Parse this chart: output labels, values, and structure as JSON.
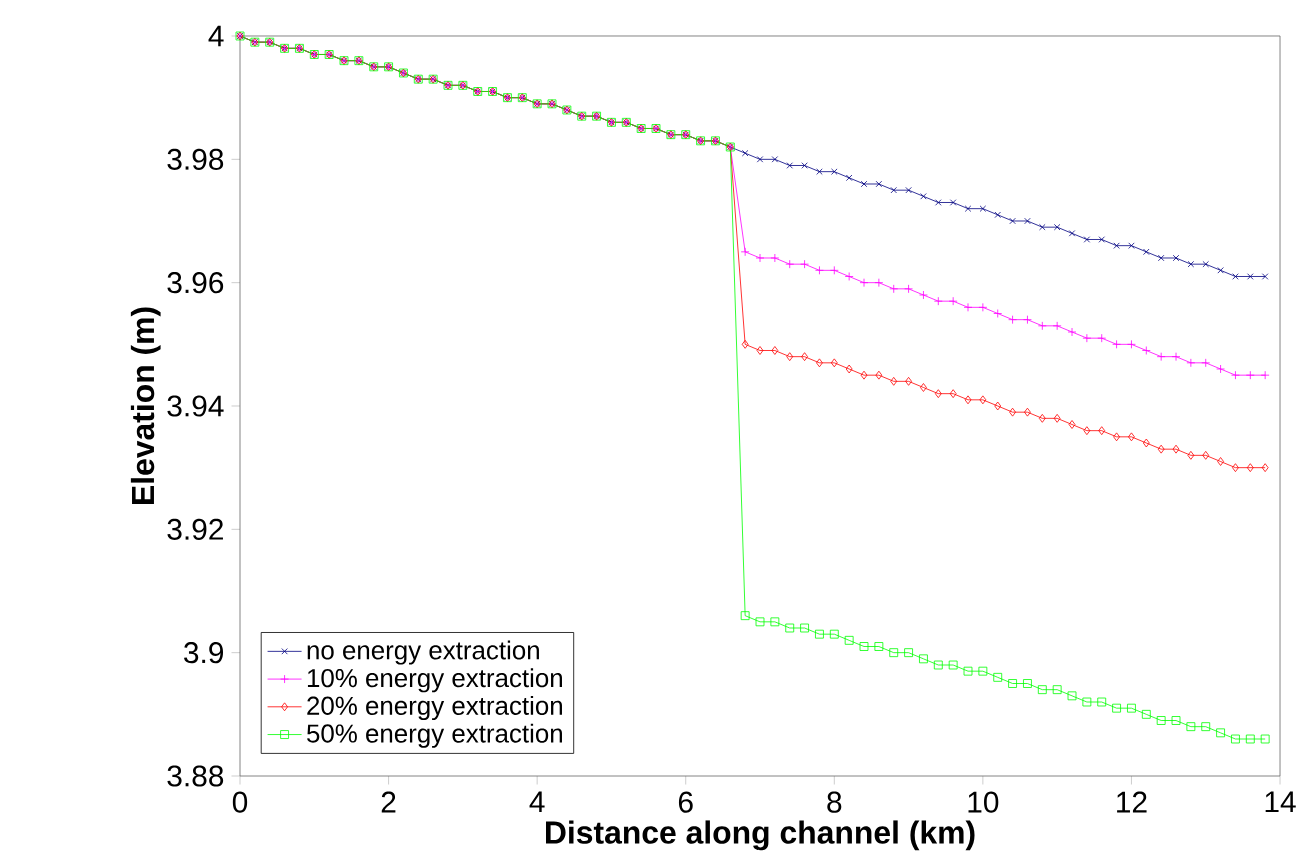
{
  "chart_data": {
    "type": "line",
    "xlabel": "Distance along channel (km)",
    "ylabel": "Elevation (m)",
    "x": [
      0,
      0.2,
      0.4,
      0.6,
      0.8,
      1.0,
      1.2,
      1.4,
      1.6,
      1.8,
      2.0,
      2.2,
      2.4,
      2.6,
      2.8,
      3.0,
      3.2,
      3.4,
      3.6,
      3.8,
      4.0,
      4.2,
      4.4,
      4.6,
      4.8,
      5.0,
      5.2,
      5.4,
      5.6,
      5.8,
      6.0,
      6.2,
      6.4,
      6.6,
      6.8,
      7.0,
      7.2,
      7.4,
      7.6,
      7.8,
      8.0,
      8.2,
      8.4,
      8.6,
      8.8,
      9.0,
      9.2,
      9.4,
      9.6,
      9.8,
      10.0,
      10.2,
      10.4,
      10.6,
      10.8,
      11.0,
      11.2,
      11.4,
      11.6,
      11.8,
      12.0,
      12.2,
      12.4,
      12.6,
      12.8,
      13.0,
      13.2,
      13.4,
      13.6,
      13.8
    ],
    "series": [
      {
        "name": "no energy extraction",
        "color": "#000080",
        "marker": "cross",
        "values": [
          4.0,
          3.999,
          3.999,
          3.998,
          3.998,
          3.997,
          3.997,
          3.996,
          3.996,
          3.995,
          3.995,
          3.994,
          3.993,
          3.993,
          3.992,
          3.992,
          3.991,
          3.991,
          3.99,
          3.99,
          3.989,
          3.989,
          3.988,
          3.987,
          3.987,
          3.986,
          3.986,
          3.985,
          3.985,
          3.984,
          3.984,
          3.983,
          3.983,
          3.982,
          3.981,
          3.98,
          3.98,
          3.979,
          3.979,
          3.978,
          3.978,
          3.977,
          3.976,
          3.976,
          3.975,
          3.975,
          3.974,
          3.973,
          3.973,
          3.972,
          3.972,
          3.971,
          3.97,
          3.97,
          3.969,
          3.969,
          3.968,
          3.967,
          3.967,
          3.966,
          3.966,
          3.965,
          3.964,
          3.964,
          3.963,
          3.963,
          3.962,
          3.961,
          3.961,
          3.961
        ]
      },
      {
        "name": "10% energy extraction",
        "color": "#ff00ff",
        "marker": "plus",
        "values": [
          4.0,
          3.999,
          3.999,
          3.998,
          3.998,
          3.997,
          3.997,
          3.996,
          3.996,
          3.995,
          3.995,
          3.994,
          3.993,
          3.993,
          3.992,
          3.992,
          3.991,
          3.991,
          3.99,
          3.99,
          3.989,
          3.989,
          3.988,
          3.987,
          3.987,
          3.986,
          3.986,
          3.985,
          3.985,
          3.984,
          3.984,
          3.983,
          3.983,
          3.982,
          3.965,
          3.964,
          3.964,
          3.963,
          3.963,
          3.962,
          3.962,
          3.961,
          3.96,
          3.96,
          3.959,
          3.959,
          3.958,
          3.957,
          3.957,
          3.956,
          3.956,
          3.955,
          3.954,
          3.954,
          3.953,
          3.953,
          3.952,
          3.951,
          3.951,
          3.95,
          3.95,
          3.949,
          3.948,
          3.948,
          3.947,
          3.947,
          3.946,
          3.945,
          3.945,
          3.945
        ]
      },
      {
        "name": "20% energy extraction",
        "color": "#ff0000",
        "marker": "diamond",
        "values": [
          4.0,
          3.999,
          3.999,
          3.998,
          3.998,
          3.997,
          3.997,
          3.996,
          3.996,
          3.995,
          3.995,
          3.994,
          3.993,
          3.993,
          3.992,
          3.992,
          3.991,
          3.991,
          3.99,
          3.99,
          3.989,
          3.989,
          3.988,
          3.987,
          3.987,
          3.986,
          3.986,
          3.985,
          3.985,
          3.984,
          3.984,
          3.983,
          3.983,
          3.982,
          3.95,
          3.949,
          3.949,
          3.948,
          3.948,
          3.947,
          3.947,
          3.946,
          3.945,
          3.945,
          3.944,
          3.944,
          3.943,
          3.942,
          3.942,
          3.941,
          3.941,
          3.94,
          3.939,
          3.939,
          3.938,
          3.938,
          3.937,
          3.936,
          3.936,
          3.935,
          3.935,
          3.934,
          3.933,
          3.933,
          3.932,
          3.932,
          3.931,
          3.93,
          3.93,
          3.93
        ]
      },
      {
        "name": "50% energy extraction",
        "color": "#00ff00",
        "marker": "square",
        "values": [
          4.0,
          3.999,
          3.999,
          3.998,
          3.998,
          3.997,
          3.997,
          3.996,
          3.996,
          3.995,
          3.995,
          3.994,
          3.993,
          3.993,
          3.992,
          3.992,
          3.991,
          3.991,
          3.99,
          3.99,
          3.989,
          3.989,
          3.988,
          3.987,
          3.987,
          3.986,
          3.986,
          3.985,
          3.985,
          3.984,
          3.984,
          3.983,
          3.983,
          3.982,
          3.906,
          3.905,
          3.905,
          3.904,
          3.904,
          3.903,
          3.903,
          3.902,
          3.901,
          3.901,
          3.9,
          3.9,
          3.899,
          3.898,
          3.898,
          3.897,
          3.897,
          3.896,
          3.895,
          3.895,
          3.894,
          3.894,
          3.893,
          3.892,
          3.892,
          3.891,
          3.891,
          3.89,
          3.889,
          3.889,
          3.888,
          3.888,
          3.887,
          3.886,
          3.886,
          3.886
        ]
      }
    ],
    "xlim": [
      0,
      14
    ],
    "xticks": [
      0,
      2,
      4,
      6,
      8,
      10,
      12,
      14
    ],
    "ylim": [
      3.88,
      4
    ],
    "yticks": [
      3.88,
      3.9,
      3.92,
      3.94,
      3.96,
      3.98,
      4
    ],
    "grid": false,
    "legend": "bottom left"
  }
}
